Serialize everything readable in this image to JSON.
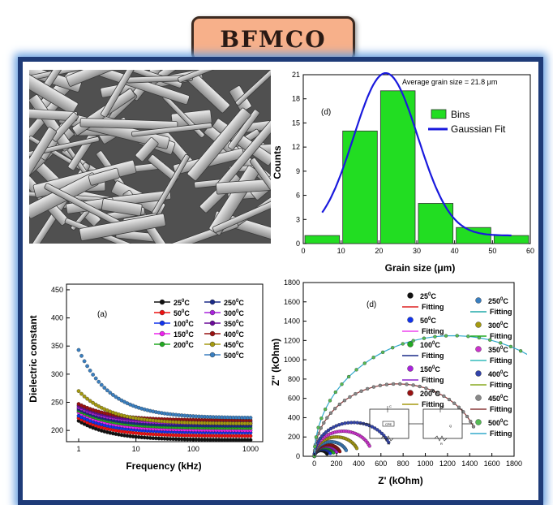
{
  "header": {
    "title": "BFMCO"
  },
  "colors": {
    "frame": "#1e3b78",
    "glow": "#6aa0e0",
    "bins": "#22dd22",
    "fit": "#1a1add"
  },
  "sem": {
    "alt": "SEM micrograph of rod-like grains"
  },
  "chart_data": [
    {
      "type": "bar",
      "panel_label": "(d)",
      "annotation": "Average grain size = 21.8 μm",
      "xlabel": "Grain size (μm)",
      "ylabel": "Counts",
      "xlim": [
        0,
        60
      ],
      "ylim": [
        0,
        21
      ],
      "xticks": [
        0,
        10,
        20,
        30,
        40,
        50,
        60
      ],
      "yticks": [
        0,
        3,
        6,
        9,
        12,
        15,
        18,
        21
      ],
      "bins": [
        {
          "x0": 0,
          "x1": 10,
          "count": 1
        },
        {
          "x0": 10,
          "x1": 20,
          "count": 14
        },
        {
          "x0": 20,
          "x1": 30,
          "count": 19
        },
        {
          "x0": 30,
          "x1": 40,
          "count": 5
        },
        {
          "x0": 40,
          "x1": 50,
          "count": 2
        },
        {
          "x0": 50,
          "x1": 60,
          "count": 1
        }
      ],
      "fit": {
        "mean": 21.8,
        "sigma": 8.5,
        "amplitude": 20.2,
        "baseline": 1,
        "x_range": [
          5,
          55
        ]
      },
      "legend": [
        "Bins",
        "Gaussian Fit"
      ]
    },
    {
      "type": "line",
      "panel_label": "(a)",
      "xlabel": "Frequency (kHz)",
      "ylabel": "Dielectric constant",
      "xscale": "log",
      "xlim": [
        1,
        1000
      ],
      "ylim": [
        180,
        460
      ],
      "xticks": [
        1,
        10,
        100,
        1000
      ],
      "yticks": [
        200,
        250,
        300,
        350,
        400,
        450
      ],
      "series": [
        {
          "name": "25",
          "color": "#111111",
          "start": 217,
          "end": 183
        },
        {
          "name": "50",
          "color": "#ee1111",
          "start": 222,
          "end": 190
        },
        {
          "name": "100",
          "color": "#1133ee",
          "start": 226,
          "end": 196
        },
        {
          "name": "150",
          "color": "#ee22ee",
          "start": 232,
          "end": 200
        },
        {
          "name": "200",
          "color": "#22aa22",
          "start": 235,
          "end": 204
        },
        {
          "name": "250",
          "color": "#1a2a88",
          "start": 238,
          "end": 208
        },
        {
          "name": "300",
          "color": "#aa22dd",
          "start": 241,
          "end": 212
        },
        {
          "name": "350",
          "color": "#6a0a9a",
          "start": 244,
          "end": 215
        },
        {
          "name": "400",
          "color": "#991111",
          "start": 247,
          "end": 218
        },
        {
          "name": "450",
          "color": "#a59a10",
          "start": 270,
          "end": 212
        },
        {
          "name": "500",
          "color": "#3a7fc0",
          "start": 343,
          "end": 222
        }
      ]
    },
    {
      "type": "scatter",
      "panel_label": "(d)",
      "xlabel": "Z' (kOhm)",
      "ylabel": "Z'' (kOhm)",
      "xlim": [
        -100,
        1800
      ],
      "ylim": [
        0,
        1800
      ],
      "xticks": [
        0,
        200,
        400,
        600,
        800,
        1000,
        1200,
        1400,
        1600,
        1800
      ],
      "yticks": [
        0,
        200,
        400,
        600,
        800,
        1000,
        1200,
        1400,
        1600,
        1800
      ],
      "fitting_label": "Fitting",
      "series": [
        {
          "name": "25",
          "color": "#111111",
          "fit": "#dd2222",
          "R": 120
        },
        {
          "name": "50",
          "color": "#1133ee",
          "fit": "#ee44ee",
          "R": 150
        },
        {
          "name": "100",
          "color": "#22aa22",
          "fit": "#1a2a88",
          "R": 180
        },
        {
          "name": "150",
          "color": "#aa22dd",
          "fit": "#8822cc",
          "R": 210
        },
        {
          "name": "200",
          "color": "#991111",
          "fit": "#a59a10",
          "R": 240
        },
        {
          "name": "250",
          "color": "#3a7fc0",
          "fit": "#22aaaa",
          "R": 300
        },
        {
          "name": "300",
          "color": "#a59a10",
          "fit": "#22aa22",
          "R": 400
        },
        {
          "name": "350",
          "color": "#cc33cc",
          "fit": "#33bbbb",
          "R": 520
        },
        {
          "name": "400",
          "color": "#3344aa",
          "fit": "#88aa22",
          "R": 700
        },
        {
          "name": "450",
          "color": "#888888",
          "fit": "#8a3a3a",
          "R": 1500
        },
        {
          "name": "500",
          "color": "#55bb55",
          "fit": "#33aacc",
          "R": 2500
        }
      ],
      "circuit": {
        "labels": [
          "C",
          "CPE",
          "R",
          "C",
          "Q",
          "R"
        ]
      }
    }
  ]
}
